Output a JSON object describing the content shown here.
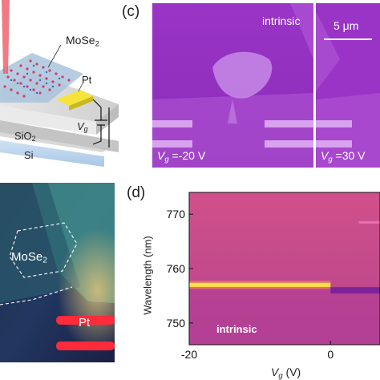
{
  "panel_a": {
    "material_label": "MoSe",
    "material_sub": "2",
    "electrode_label": "Pt",
    "gate_label": "V",
    "gate_sub": "g",
    "oxide_label": "SiO",
    "oxide_sub": "2",
    "substrate_label": "Si"
  },
  "panel_b": {
    "material_label": "MoSe",
    "material_sub": "2",
    "electrode_label": "Pt"
  },
  "panel_c": {
    "panel_letter": "(c)",
    "state_label": "intrinsic",
    "scale_bar_label": "5 μm",
    "left_image": {
      "label_var": "V",
      "label_sub": "g",
      "label_value": " =-20 V"
    },
    "right_image": {
      "label_var": "V",
      "label_sub": "g",
      "label_value": " =30 V"
    }
  },
  "panel_d": {
    "panel_letter": "(d)",
    "state_label": "intrinsic",
    "chart_data": {
      "type": "heatmap",
      "xlabel_var": "V",
      "xlabel_sub": "g",
      "xlabel_unit": " (V)",
      "ylabel": "Wavelength (nm)",
      "x_ticks": [
        "-20",
        "0"
      ],
      "y_ticks": [
        "770",
        "760",
        "750"
      ],
      "xlim": [
        -20,
        7
      ],
      "ylim": [
        746,
        774
      ],
      "features": [
        {
          "wavelength": 757,
          "vg_range": [
            -20,
            0
          ],
          "intensity": "high"
        },
        {
          "wavelength": 756,
          "vg_range": [
            0,
            7
          ],
          "intensity": "medium"
        },
        {
          "wavelength": 768.5,
          "vg_range": [
            4,
            7
          ],
          "intensity": "low"
        }
      ],
      "colors": {
        "background": "#c8508c",
        "band_peak": "#ffe24a",
        "band_edge": "#ff9a3c",
        "low": "#6a1a9a"
      }
    }
  }
}
